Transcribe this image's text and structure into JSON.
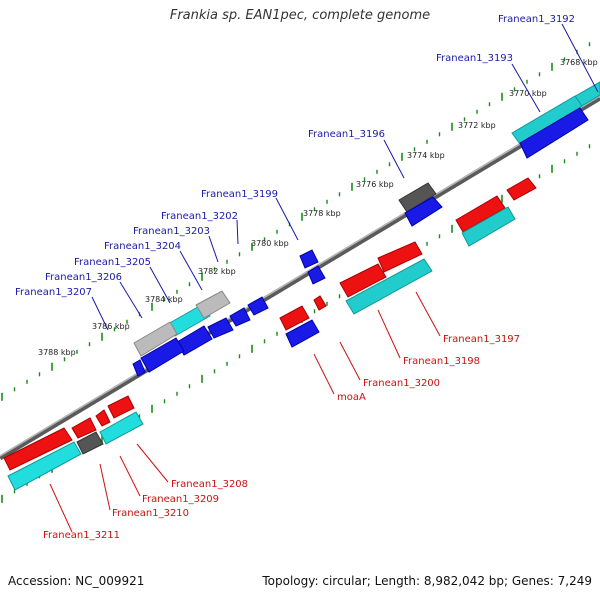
{
  "title": "Frankia sp. EAN1pec, complete genome",
  "footer": {
    "accession": "Accession: NC_009921",
    "info": "Topology: circular; Length: 8,982,042 bp; Genes: 7,249"
  },
  "colors": {
    "top_labels": "#1a1aa8",
    "bottom_labels": "#cc1111",
    "red": "#ee1111",
    "blue": "#1a1ae6",
    "cyan": "#22dddd",
    "gray": "#666666",
    "lightgray": "#bbbbbb",
    "ticks": "#1a8a1a",
    "backbone": "#777777"
  },
  "kbp_ticks": [
    {
      "label": "3768 kbp",
      "pos": 3768
    },
    {
      "label": "3770 kbp",
      "pos": 3770
    },
    {
      "label": "3772 kbp",
      "pos": 3772
    },
    {
      "label": "3774 kbp",
      "pos": 3774
    },
    {
      "label": "3776 kbp",
      "pos": 3776
    },
    {
      "label": "3778 kbp",
      "pos": 3778
    },
    {
      "label": "3780 kbp",
      "pos": 3780
    },
    {
      "label": "3782 kbp",
      "pos": 3782
    },
    {
      "label": "3784 kbp",
      "pos": 3784
    },
    {
      "label": "3786 kbp",
      "pos": 3786
    },
    {
      "label": "3788 kbp",
      "pos": 3788
    }
  ],
  "top_gene_labels": [
    "Franean1_3192",
    "Franean1_3193",
    "Franean1_3196",
    "Franean1_3199",
    "Franean1_3202",
    "Franean1_3203",
    "Franean1_3204",
    "Franean1_3205",
    "Franean1_3206",
    "Franean1_3207"
  ],
  "bottom_gene_labels": [
    "Franean1_3197",
    "Franean1_3198",
    "Franean1_3200",
    "moaA",
    "Franean1_3208",
    "Franean1_3209",
    "Franean1_3210",
    "Franean1_3211"
  ]
}
